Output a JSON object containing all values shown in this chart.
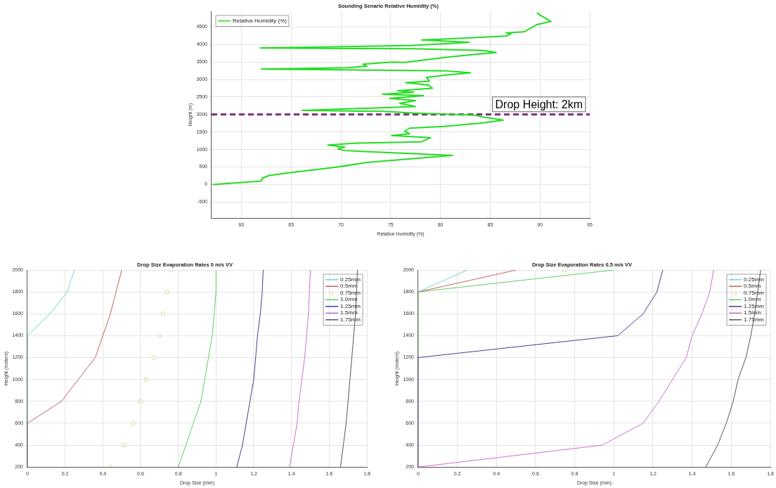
{
  "chart_data": [
    {
      "type": "line",
      "title": "Sounding Senario Relative Humidity (%)",
      "xlabel": "Relative Humidity (%)",
      "ylabel": "Height (m)",
      "xlim": [
        57,
        95
      ],
      "xticks": [
        60,
        65,
        70,
        75,
        80,
        85,
        90,
        95
      ],
      "ylim": [
        -960,
        4950
      ],
      "yticks": [
        -500,
        0,
        500,
        1000,
        1500,
        2000,
        2500,
        3000,
        3500,
        4000,
        4500
      ],
      "grid": true,
      "legend": "top left",
      "marker": "none",
      "ref_lines": [
        {
          "axis": "y",
          "value": 2000,
          "color": "#7b2d7b",
          "line_style": "dashed"
        }
      ],
      "annotations": [
        "Drop Height: 2km"
      ],
      "series": [
        {
          "name": "Relative Humidity (%)",
          "color": "#22dd22",
          "line_style": "solid",
          "x": [
            57.1,
            62.0,
            62.1,
            62.8,
            64.9,
            69.4,
            72.6,
            81.2,
            70.3,
            69.7,
            70.4,
            68.7,
            71.3,
            78.1,
            79.0,
            75.1,
            76.9,
            76.4,
            76.9,
            80.4,
            84.3,
            86.3,
            84.0,
            83.5,
            77.3,
            74.2,
            66.1,
            72.6,
            77.5,
            75.9,
            77.5,
            74.9,
            78.3,
            74.2,
            77.3,
            75.7,
            79.2,
            78.8,
            76.5,
            78.9,
            78.6,
            80.7,
            83.0,
            80.4,
            62.0,
            70.8,
            72.6,
            72.2,
            75.2,
            76.4,
            80.4,
            83.5,
            85.6,
            84.3,
            77.0,
            61.9,
            77.0,
            82.9,
            78.1,
            80.9,
            86.6,
            87.1,
            86.6,
            88.4,
            89.7,
            91.1,
            90.0,
            89.7
          ],
          "values": [
            0,
            100,
            180,
            260,
            340,
            490,
            630,
            830,
            970,
            1020,
            1070,
            1130,
            1180,
            1220,
            1340,
            1400,
            1450,
            1520,
            1610,
            1660,
            1760,
            1840,
            1940,
            1980,
            2040,
            2090,
            2120,
            2180,
            2230,
            2320,
            2400,
            2460,
            2540,
            2580,
            2640,
            2680,
            2750,
            2840,
            2910,
            2950,
            3060,
            3130,
            3190,
            3250,
            3300,
            3340,
            3380,
            3440,
            3500,
            3490,
            3630,
            3720,
            3770,
            3830,
            3880,
            3900,
            3970,
            4060,
            4130,
            4160,
            4240,
            4310,
            4330,
            4360,
            4570,
            4660,
            4840,
            4910
          ]
        }
      ]
    },
    {
      "type": "line",
      "title": "Drop Size Evaporation Rates 0 m/s VV",
      "xlabel": "Drop Size (mm)",
      "ylabel": "Height (meters)",
      "xlim": [
        0,
        1.8
      ],
      "xticks": [
        0,
        0.2,
        0.4,
        0.6,
        0.8,
        1,
        1.2,
        1.4,
        1.6,
        1.8
      ],
      "ylim": [
        200,
        2000
      ],
      "yticks": [
        200,
        400,
        600,
        800,
        1000,
        1200,
        1400,
        1600,
        1800,
        2000
      ],
      "grid": true,
      "legend": "top right",
      "marker": "none",
      "series": [
        {
          "name": "0.25mm",
          "color": "#70d4d4",
          "x": [
            0,
            0,
            0.12,
            0.21,
            0.25
          ],
          "values": [
            200,
            1400,
            1600,
            1800,
            2000
          ]
        },
        {
          "name": "0.5mm",
          "color": "#c86060",
          "x": [
            0,
            0,
            0.18,
            0.27,
            0.36,
            0.4,
            0.44,
            0.47,
            0.5
          ],
          "values": [
            200,
            600,
            800,
            1000,
            1200,
            1400,
            1600,
            1800,
            2000
          ]
        },
        {
          "name": "0.75mm",
          "type": "scatter",
          "marker": "circle",
          "color": "#e0e0a0",
          "x": [
            0.44,
            0.51,
            0.56,
            0.6,
            0.63,
            0.67,
            0.7,
            0.72,
            0.74,
            0.76
          ],
          "values": [
            200,
            400,
            600,
            800,
            1000,
            1200,
            1400,
            1600,
            1800,
            2000
          ]
        },
        {
          "name": "1.0mm",
          "color": "#60cc60",
          "x": [
            0.8,
            0.84,
            0.88,
            0.92,
            0.94,
            0.96,
            0.98,
            0.99,
            1.0,
            1.0
          ],
          "values": [
            200,
            400,
            600,
            800,
            1000,
            1200,
            1400,
            1600,
            1800,
            2000
          ]
        },
        {
          "name": "1.25mm",
          "color": "#40408c",
          "x": [
            1.11,
            1.14,
            1.16,
            1.18,
            1.2,
            1.21,
            1.22,
            1.235,
            1.245,
            1.25
          ],
          "values": [
            200,
            400,
            600,
            800,
            1000,
            1200,
            1400,
            1600,
            1800,
            2000
          ]
        },
        {
          "name": "1.5mm",
          "color": "#cc70cc",
          "x": [
            1.39,
            1.41,
            1.43,
            1.44,
            1.455,
            1.47,
            1.48,
            1.49,
            1.495,
            1.5
          ],
          "values": [
            200,
            400,
            600,
            800,
            1000,
            1200,
            1400,
            1600,
            1800,
            2000
          ]
        },
        {
          "name": "1.75mm",
          "color": "#555555",
          "x": [
            1.66,
            1.675,
            1.69,
            1.7,
            1.71,
            1.72,
            1.73,
            1.74,
            1.745,
            1.75
          ],
          "values": [
            200,
            400,
            600,
            800,
            1000,
            1200,
            1400,
            1600,
            1800,
            2000
          ]
        }
      ]
    },
    {
      "type": "line",
      "title": "Drop Size Evaporation Rates 0.5 m/s VV",
      "xlabel": "Drop Size (mm)",
      "ylabel": "Height (meters)",
      "xlim": [
        0,
        1.8
      ],
      "xticks": [
        0,
        0.2,
        0.4,
        0.6,
        0.8,
        1,
        1.2,
        1.4,
        1.6,
        1.8
      ],
      "ylim": [
        200,
        2000
      ],
      "yticks": [
        200,
        400,
        600,
        800,
        1000,
        1200,
        1400,
        1600,
        1800,
        2000
      ],
      "grid": true,
      "legend": "top right",
      "marker": "none",
      "series": [
        {
          "name": "0.25mm",
          "color": "#70d4d4",
          "x": [
            0,
            0.25
          ],
          "values": [
            1800,
            2000
          ]
        },
        {
          "name": "0.5mm",
          "color": "#c86060",
          "x": [
            0,
            0.5
          ],
          "values": [
            1800,
            2000
          ]
        },
        {
          "name": "0.75mm",
          "type": "scatter",
          "marker": "circle",
          "color": "#e0e0a0",
          "x": [
            0.75
          ],
          "values": [
            2000
          ]
        },
        {
          "name": "1.0mm",
          "color": "#60cc60",
          "x": [
            0,
            0,
            1.0
          ],
          "values": [
            1200,
            1800,
            2000
          ]
        },
        {
          "name": "1.25mm",
          "color": "#40408c",
          "x": [
            0,
            0,
            1.02,
            1.15,
            1.22,
            1.25
          ],
          "values": [
            200,
            1200,
            1400,
            1600,
            1800,
            2000
          ]
        },
        {
          "name": "1.5mm",
          "color": "#cc70cc",
          "x": [
            0,
            0.94,
            1.15,
            1.23,
            1.3,
            1.37,
            1.4,
            1.45,
            1.49,
            1.51
          ],
          "values": [
            200,
            400,
            600,
            800,
            1000,
            1200,
            1400,
            1600,
            1800,
            2000
          ]
        },
        {
          "name": "1.75mm",
          "color": "#555555",
          "x": [
            1.47,
            1.53,
            1.575,
            1.61,
            1.635,
            1.675,
            1.7,
            1.72,
            1.735,
            1.75
          ],
          "values": [
            200,
            400,
            600,
            800,
            1000,
            1200,
            1400,
            1600,
            1800,
            2000
          ]
        }
      ]
    }
  ]
}
